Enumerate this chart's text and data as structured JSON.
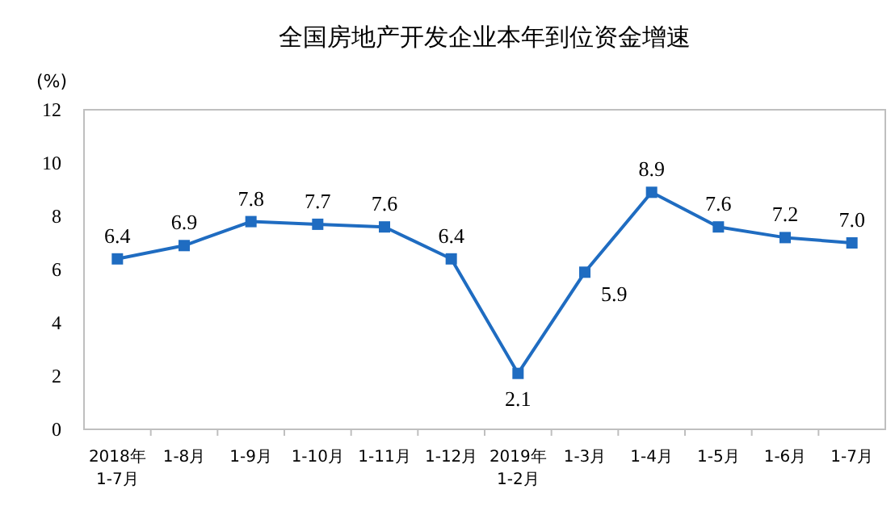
{
  "chart_data": {
    "type": "line",
    "title": "全国房地产开发企业本年到位资金增速",
    "ylabel": "(%)",
    "categories": [
      "2018年\n1-7月",
      "1-8月",
      "1-9月",
      "1-10月",
      "1-11月",
      "1-12月",
      "2019年\n1-2月",
      "1-3月",
      "1-4月",
      "1-5月",
      "1-6月",
      "1-7月"
    ],
    "values": [
      6.4,
      6.9,
      7.8,
      7.7,
      7.6,
      6.4,
      2.1,
      5.9,
      8.9,
      7.6,
      7.2,
      7.0
    ],
    "color": "#1f6cc1",
    "marker": "square",
    "value_labels": [
      "6.4",
      "6.9",
      "7.8",
      "7.7",
      "7.6",
      "6.4",
      "2.1",
      "5.9",
      "8.9",
      "7.6",
      "7.2",
      "7.0"
    ],
    "ylim": [
      0,
      12
    ],
    "yticks": [
      0,
      2,
      4,
      6,
      8,
      10,
      12
    ]
  }
}
